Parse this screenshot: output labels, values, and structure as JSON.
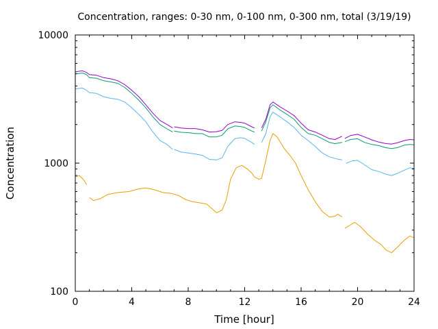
{
  "chart_data": {
    "type": "line",
    "title": "Concentration, ranges: 0-30 nm, 0-100 nm, 0-300 nm, total (3/19/19)",
    "xlabel": "Time [hour]",
    "ylabel": "Concentration",
    "xlim": [
      0,
      24
    ],
    "ylim": [
      100,
      10000
    ],
    "yscale": "log",
    "grid": false,
    "legend": "none",
    "x_ticks": [
      "0",
      "4",
      "8",
      "12",
      "16",
      "20",
      "24"
    ],
    "y_ticks": [
      "100",
      "1000",
      "10000"
    ],
    "y_tick_values": [
      100,
      1000,
      10000
    ],
    "series": [
      {
        "color": "#e69f00",
        "points": [
          [
            0,
            780
          ],
          [
            0.3,
            800
          ],
          [
            0.6,
            740
          ],
          [
            0.8,
            680
          ],
          null,
          [
            1,
            540
          ],
          [
            1.3,
            510
          ],
          [
            1.8,
            530
          ],
          [
            2.3,
            570
          ],
          [
            3,
            590
          ],
          [
            3.8,
            600
          ],
          [
            4.5,
            630
          ],
          [
            5,
            640
          ],
          [
            5.6,
            620
          ],
          [
            6.2,
            590
          ],
          [
            6.8,
            580
          ],
          [
            7.3,
            560
          ],
          [
            7.8,
            520
          ],
          [
            8.3,
            500
          ],
          [
            8.8,
            490
          ],
          [
            9.3,
            480
          ],
          [
            9.7,
            440
          ],
          [
            10,
            410
          ],
          [
            10.4,
            430
          ],
          [
            10.7,
            520
          ],
          [
            11,
            750
          ],
          [
            11.4,
            920
          ],
          [
            11.8,
            960
          ],
          [
            12.2,
            900
          ],
          [
            12.5,
            840
          ],
          [
            12.7,
            780
          ],
          [
            13,
            750
          ],
          [
            13.2,
            760
          ],
          [
            13.5,
            1050
          ],
          [
            13.8,
            1500
          ],
          [
            14,
            1700
          ],
          [
            14.3,
            1600
          ],
          [
            14.8,
            1300
          ],
          [
            15.2,
            1150
          ],
          [
            15.6,
            1000
          ],
          [
            16,
            800
          ],
          [
            16.5,
            620
          ],
          [
            17,
            500
          ],
          [
            17.5,
            420
          ],
          [
            18,
            380
          ],
          [
            18.4,
            385
          ],
          [
            18.6,
            400
          ],
          [
            18.9,
            380
          ],
          null,
          [
            19.1,
            310
          ],
          [
            19.5,
            330
          ],
          [
            19.8,
            345
          ],
          [
            20.2,
            320
          ],
          [
            20.7,
            280
          ],
          [
            21.2,
            250
          ],
          [
            21.7,
            230
          ],
          [
            22,
            210
          ],
          [
            22.4,
            200
          ],
          [
            22.8,
            220
          ],
          [
            23.3,
            250
          ],
          [
            23.7,
            270
          ],
          [
            24,
            262
          ]
        ]
      },
      {
        "color": "#56b4e9",
        "points": [
          [
            0,
            3800
          ],
          [
            0.5,
            3850
          ],
          [
            0.8,
            3700
          ],
          [
            1,
            3550
          ],
          [
            1.5,
            3500
          ],
          [
            2,
            3300
          ],
          [
            2.5,
            3200
          ],
          [
            3,
            3150
          ],
          [
            3.5,
            3000
          ],
          [
            4,
            2700
          ],
          [
            4.5,
            2400
          ],
          [
            5,
            2100
          ],
          [
            5.5,
            1750
          ],
          [
            6,
            1500
          ],
          [
            6.5,
            1400
          ],
          [
            6.9,
            1280
          ],
          null,
          [
            7,
            1280
          ],
          [
            7.5,
            1220
          ],
          [
            8,
            1200
          ],
          [
            8.5,
            1180
          ],
          [
            9,
            1150
          ],
          [
            9.5,
            1070
          ],
          [
            10,
            1060
          ],
          [
            10.4,
            1100
          ],
          [
            10.8,
            1350
          ],
          [
            11.3,
            1550
          ],
          [
            11.7,
            1580
          ],
          [
            12,
            1560
          ],
          [
            12.5,
            1450
          ],
          [
            12.7,
            1400
          ],
          null,
          [
            13.2,
            1450
          ],
          [
            13.5,
            1700
          ],
          [
            13.8,
            2300
          ],
          [
            14,
            2500
          ],
          [
            14.5,
            2300
          ],
          [
            15,
            2100
          ],
          [
            15.5,
            1900
          ],
          [
            16,
            1650
          ],
          [
            16.5,
            1500
          ],
          [
            17,
            1350
          ],
          [
            17.5,
            1200
          ],
          [
            18,
            1120
          ],
          [
            18.5,
            1080
          ],
          [
            18.9,
            1060
          ],
          null,
          [
            19.2,
            1000
          ],
          [
            19.6,
            1040
          ],
          [
            20,
            1050
          ],
          [
            20.5,
            970
          ],
          [
            21,
            890
          ],
          [
            21.5,
            860
          ],
          [
            22,
            820
          ],
          [
            22.4,
            800
          ],
          [
            22.8,
            830
          ],
          [
            23.3,
            880
          ],
          [
            23.7,
            920
          ],
          [
            24,
            910
          ]
        ]
      },
      {
        "color": "#009e73",
        "points": [
          [
            0,
            4950
          ],
          [
            0.5,
            5050
          ],
          [
            0.8,
            4900
          ],
          [
            1,
            4650
          ],
          [
            1.5,
            4600
          ],
          [
            2,
            4400
          ],
          [
            2.5,
            4300
          ],
          [
            3,
            4200
          ],
          [
            3.5,
            3900
          ],
          [
            4,
            3500
          ],
          [
            4.5,
            3100
          ],
          [
            5,
            2700
          ],
          [
            5.5,
            2300
          ],
          [
            6,
            2000
          ],
          [
            6.5,
            1850
          ],
          [
            6.9,
            1750
          ],
          null,
          [
            7,
            1780
          ],
          [
            7.5,
            1740
          ],
          [
            8,
            1730
          ],
          [
            8.5,
            1700
          ],
          [
            9,
            1700
          ],
          [
            9.5,
            1600
          ],
          [
            10,
            1600
          ],
          [
            10.4,
            1650
          ],
          [
            10.8,
            1850
          ],
          [
            11.3,
            1950
          ],
          [
            11.7,
            1930
          ],
          [
            12,
            1900
          ],
          [
            12.5,
            1780
          ],
          [
            12.7,
            1750
          ],
          null,
          [
            13.2,
            1780
          ],
          [
            13.5,
            2100
          ],
          [
            13.8,
            2700
          ],
          [
            14,
            2850
          ],
          [
            14.5,
            2600
          ],
          [
            15,
            2400
          ],
          [
            15.5,
            2200
          ],
          [
            16,
            1900
          ],
          [
            16.5,
            1700
          ],
          [
            17,
            1650
          ],
          [
            17.5,
            1550
          ],
          [
            18,
            1450
          ],
          [
            18.4,
            1420
          ],
          [
            18.9,
            1450
          ],
          null,
          [
            19.1,
            1470
          ],
          [
            19.5,
            1530
          ],
          [
            20,
            1550
          ],
          [
            20.5,
            1450
          ],
          [
            21,
            1400
          ],
          [
            21.5,
            1370
          ],
          [
            22,
            1320
          ],
          [
            22.4,
            1300
          ],
          [
            22.8,
            1320
          ],
          [
            23.3,
            1380
          ],
          [
            23.7,
            1400
          ],
          [
            24,
            1390
          ]
        ]
      },
      {
        "color": "#9400d3",
        "points": [
          [
            0,
            5150
          ],
          [
            0.5,
            5250
          ],
          [
            0.8,
            5100
          ],
          [
            1,
            4900
          ],
          [
            1.5,
            4850
          ],
          [
            2,
            4650
          ],
          [
            2.5,
            4550
          ],
          [
            3,
            4400
          ],
          [
            3.5,
            4100
          ],
          [
            4,
            3700
          ],
          [
            4.5,
            3300
          ],
          [
            5,
            2850
          ],
          [
            5.5,
            2450
          ],
          [
            6,
            2150
          ],
          [
            6.5,
            2000
          ],
          [
            6.9,
            1880
          ],
          null,
          [
            7,
            1920
          ],
          [
            7.5,
            1880
          ],
          [
            8,
            1860
          ],
          [
            8.5,
            1860
          ],
          [
            9,
            1820
          ],
          [
            9.5,
            1750
          ],
          [
            10,
            1760
          ],
          [
            10.4,
            1800
          ],
          [
            10.8,
            2000
          ],
          [
            11.3,
            2100
          ],
          [
            11.7,
            2080
          ],
          [
            12,
            2050
          ],
          [
            12.5,
            1920
          ],
          [
            12.7,
            1880
          ],
          null,
          [
            13.2,
            1880
          ],
          [
            13.5,
            2200
          ],
          [
            13.8,
            2850
          ],
          [
            14,
            3000
          ],
          [
            14.5,
            2750
          ],
          [
            15,
            2550
          ],
          [
            15.5,
            2350
          ],
          [
            16,
            2050
          ],
          [
            16.5,
            1820
          ],
          [
            17,
            1750
          ],
          [
            17.5,
            1650
          ],
          [
            18,
            1550
          ],
          [
            18.4,
            1530
          ],
          [
            18.9,
            1620
          ],
          null,
          [
            19.1,
            1560
          ],
          [
            19.5,
            1640
          ],
          [
            20,
            1680
          ],
          [
            20.5,
            1600
          ],
          [
            21,
            1520
          ],
          [
            21.5,
            1460
          ],
          [
            22,
            1420
          ],
          [
            22.4,
            1410
          ],
          [
            22.8,
            1440
          ],
          [
            23.3,
            1500
          ],
          [
            23.7,
            1530
          ],
          [
            24,
            1520
          ]
        ]
      }
    ]
  }
}
